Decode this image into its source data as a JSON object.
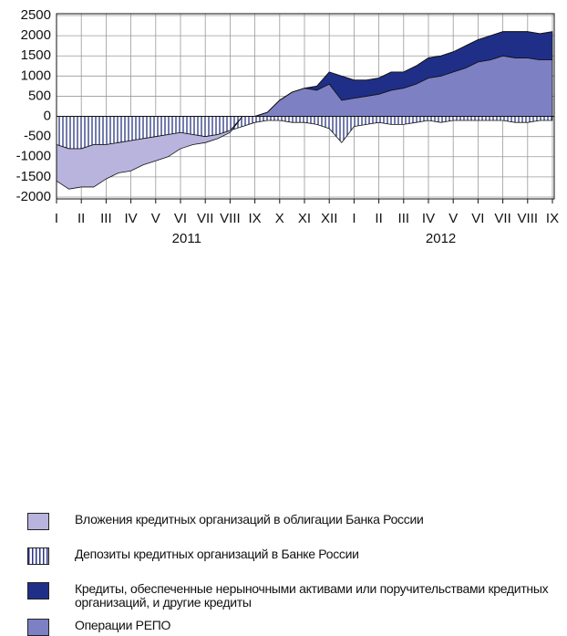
{
  "chart_data": {
    "type": "stacked-area",
    "categories": [
      "I",
      null,
      "II",
      null,
      "III",
      null,
      "IV",
      null,
      "V",
      null,
      "VI",
      null,
      "VII",
      null,
      "VIII",
      null,
      "IX",
      null,
      "X",
      null,
      "XI",
      null,
      "XII",
      null,
      "I",
      null,
      "II",
      null,
      "III",
      null,
      "IV",
      null,
      "V",
      null,
      "VI",
      null,
      "VII",
      null,
      "VIII",
      null,
      "IX"
    ],
    "year_labels": [
      "2011",
      "2012"
    ],
    "ylim": [
      -2000,
      2500
    ],
    "yticks": [
      -2000,
      -1500,
      -1000,
      -500,
      0,
      500,
      1000,
      1500,
      2000,
      2500
    ],
    "grid": true,
    "series": [
      {
        "name": "Вложения кредитных организаций в облигации Банка России",
        "color": "#b8b4dd",
        "values": [
          -900,
          -1000,
          -950,
          -1050,
          -850,
          -750,
          -750,
          -650,
          -600,
          -550,
          -400,
          -250,
          -150,
          -100,
          -50,
          0,
          0,
          0,
          0,
          0,
          0,
          0,
          0,
          0,
          0,
          0,
          0,
          0,
          0,
          0,
          0,
          0,
          0,
          0,
          0,
          0,
          0,
          0,
          0,
          0,
          0
        ]
      },
      {
        "name": "Депозиты кредитных организаций в Банке России",
        "color": "#2a3580",
        "pattern": "vertical-lines",
        "values": [
          -700,
          -800,
          -800,
          -700,
          -700,
          -650,
          -600,
          -550,
          -500,
          -450,
          -400,
          -450,
          -500,
          -450,
          -350,
          -250,
          -150,
          -100,
          -100,
          -150,
          -150,
          -200,
          -300,
          -650,
          -250,
          -200,
          -150,
          -200,
          -200,
          -150,
          -100,
          -150,
          -100,
          -100,
          -100,
          -100,
          -100,
          -150,
          -150,
          -100,
          -100
        ]
      },
      {
        "name": "Кредиты, обеспеченные нерыночными активами или поручительствами кредитных организаций, и другие кредиты",
        "color": "#1f2f88",
        "values": [
          0,
          0,
          0,
          0,
          0,
          0,
          0,
          0,
          0,
          0,
          0,
          0,
          0,
          0,
          0,
          0,
          0,
          0,
          0,
          0,
          0,
          100,
          300,
          600,
          450,
          400,
          400,
          450,
          400,
          450,
          500,
          500,
          500,
          550,
          550,
          600,
          600,
          650,
          650,
          650,
          700
        ]
      },
      {
        "name": "Операции РЕПО",
        "color": "#7d80c2",
        "values": [
          0,
          0,
          0,
          0,
          0,
          0,
          0,
          0,
          0,
          0,
          0,
          0,
          0,
          0,
          0,
          0,
          0,
          100,
          400,
          600,
          700,
          650,
          800,
          400,
          450,
          500,
          550,
          650,
          700,
          800,
          950,
          1000,
          1100,
          1200,
          1350,
          1400,
          1500,
          1450,
          1450,
          1400,
          1400
        ]
      }
    ]
  }
}
